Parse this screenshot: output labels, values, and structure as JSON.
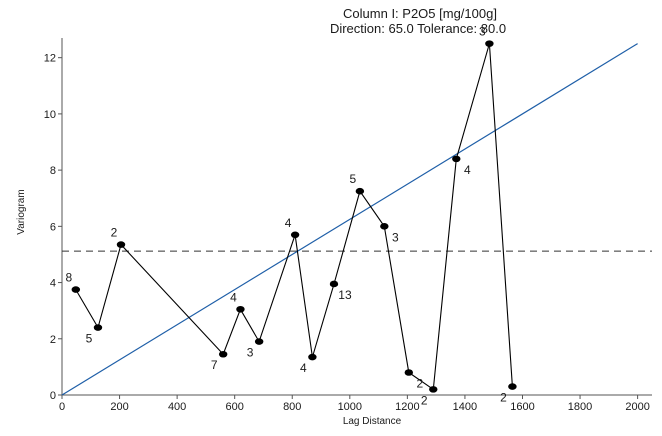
{
  "chart_data": {
    "type": "line",
    "title_lines": [
      "Column I:  P2O5 [mg/100g]",
      "Direction: 65.0   Tolerance: 80.0"
    ],
    "xlabel": "Lag Distance",
    "ylabel": "Variogram",
    "xlim": [
      0,
      2050
    ],
    "ylim": [
      0,
      12.7
    ],
    "xticks": [
      0,
      200,
      400,
      600,
      800,
      1000,
      1200,
      1400,
      1600,
      1800,
      2000
    ],
    "yticks": [
      0,
      2,
      4,
      6,
      8,
      10,
      12
    ],
    "grid": false,
    "legend": "none",
    "series": [
      {
        "kind": "experimental",
        "color": "#000000",
        "points": [
          {
            "x": 48,
            "y": 3.75,
            "count": "8"
          },
          {
            "x": 125,
            "y": 2.4,
            "count": "5"
          },
          {
            "x": 205,
            "y": 5.35,
            "count": "2"
          },
          {
            "x": 560,
            "y": 1.45,
            "count": "7"
          },
          {
            "x": 620,
            "y": 3.05,
            "count": "4"
          },
          {
            "x": 685,
            "y": 1.9,
            "count": "3"
          },
          {
            "x": 810,
            "y": 5.7,
            "count": "4"
          },
          {
            "x": 870,
            "y": 1.35,
            "count": "4"
          },
          {
            "x": 945,
            "y": 3.95,
            "count": "13"
          },
          {
            "x": 1035,
            "y": 7.25,
            "count": "5"
          },
          {
            "x": 1120,
            "y": 6.0,
            "count": "3"
          },
          {
            "x": 1205,
            "y": 0.8,
            "count": "2"
          },
          {
            "x": 1290,
            "y": 0.2,
            "count": "2"
          },
          {
            "x": 1370,
            "y": 8.4,
            "count": "4"
          },
          {
            "x": 1485,
            "y": 12.5,
            "count": "3"
          },
          {
            "x": 1565,
            "y": 0.3,
            "count": "2"
          }
        ]
      },
      {
        "kind": "model",
        "color": "#1f5fa8",
        "points": [
          {
            "x": 0,
            "y": 0
          },
          {
            "x": 2000,
            "y": 12.5
          }
        ]
      },
      {
        "kind": "sill",
        "color": "#333333",
        "dashed": true,
        "y": 5.12
      }
    ]
  }
}
